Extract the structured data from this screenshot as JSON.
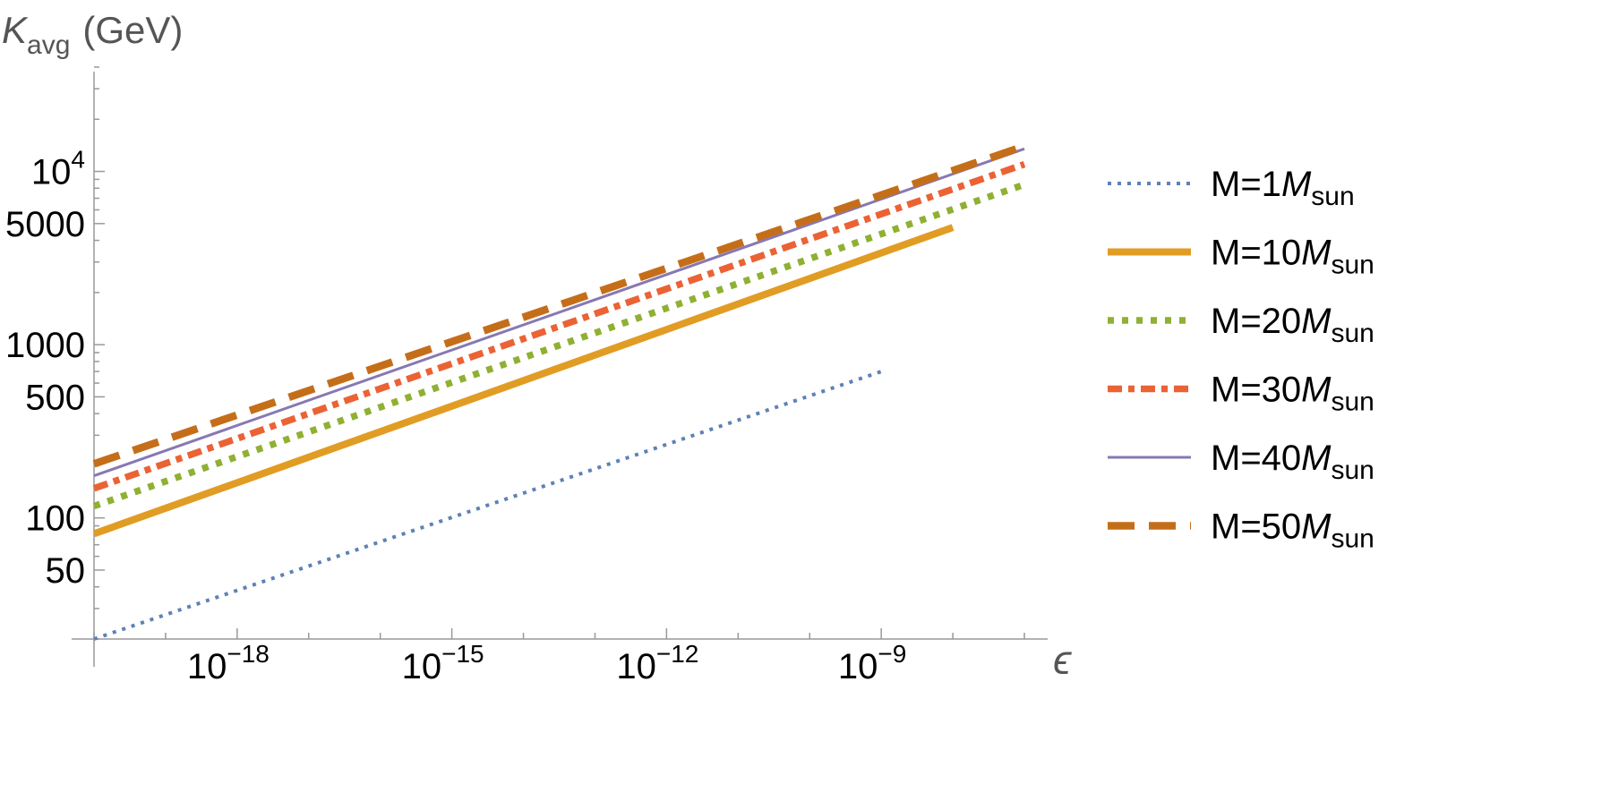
{
  "chart_data": {
    "type": "line",
    "xscale": "log",
    "yscale": "log",
    "xlim": [
      1e-20,
      1e-07
    ],
    "ylim": [
      20,
      40000
    ],
    "xlabel": "ϵ",
    "ylabel_main": "K",
    "ylabel_sub": "avg",
    "ylabel_unit": "(GeV)",
    "grid": false,
    "legend_position": "right",
    "x_ticks": [
      {
        "value": 1e-18,
        "base": "10",
        "exp": "−18"
      },
      {
        "value": 1e-15,
        "base": "10",
        "exp": "−15"
      },
      {
        "value": 1e-12,
        "base": "10",
        "exp": "−12"
      },
      {
        "value": 1e-09,
        "base": "10",
        "exp": "−9"
      }
    ],
    "y_ticks": [
      {
        "value": 50,
        "label": "50",
        "exp": ""
      },
      {
        "value": 100,
        "label": "100",
        "exp": ""
      },
      {
        "value": 500,
        "label": "500",
        "exp": ""
      },
      {
        "value": 1000,
        "label": "1000",
        "exp": ""
      },
      {
        "value": 5000,
        "label": "5000",
        "exp": ""
      },
      {
        "value": 10000,
        "label": "10",
        "exp": "4"
      }
    ],
    "series": [
      {
        "prefix": "M=1",
        "mass": "M",
        "sub": "sun",
        "color": "#5E81B5",
        "style": "dotted-thin",
        "x": [
          1e-20,
          1e-09
        ],
        "y": [
          20,
          700
        ]
      },
      {
        "prefix": "M=10",
        "mass": "M",
        "sub": "sun",
        "color": "#E19C24",
        "style": "solid-thick",
        "x": [
          1e-20,
          1e-08
        ],
        "y": [
          81,
          4750
        ]
      },
      {
        "prefix": "M=20",
        "mass": "M",
        "sub": "sun",
        "color": "#8FB032",
        "style": "dotted-thick",
        "x": [
          1e-20,
          1e-07
        ],
        "y": [
          117,
          8400
        ]
      },
      {
        "prefix": "M=30",
        "mass": "M",
        "sub": "sun",
        "color": "#EB6235",
        "style": "dashdot",
        "x": [
          1e-20,
          1e-07
        ],
        "y": [
          148,
          11000
        ]
      },
      {
        "prefix": "M=40",
        "mass": "M",
        "sub": "sun",
        "color": "#8778B3",
        "style": "solid-thin",
        "x": [
          1e-20,
          1e-07
        ],
        "y": [
          175,
          13500
        ]
      },
      {
        "prefix": "M=50",
        "mass": "M",
        "sub": "sun",
        "color": "#C56E1A",
        "style": "dashed",
        "x": [
          1e-20,
          1e-07
        ],
        "y": [
          205,
          14000
        ]
      }
    ]
  }
}
